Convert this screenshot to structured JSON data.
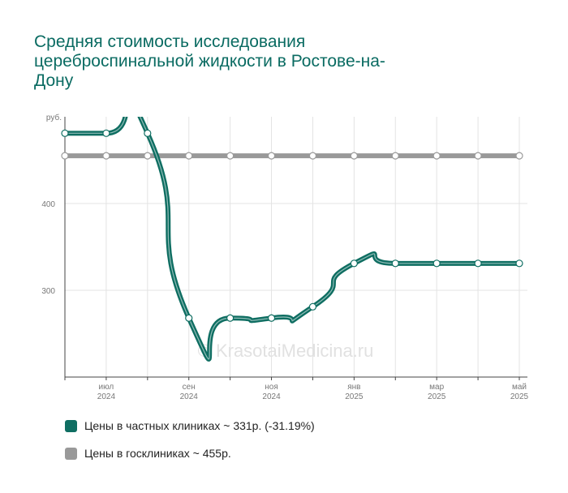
{
  "title": "Средняя стоимость исследования цереброспинальной жидкости в Ростове-на-Дону",
  "watermark": "© KrasotaiMedicina.ru",
  "chart_data": {
    "type": "line",
    "ylabel": "руб.",
    "ylim": [
      200,
      500
    ],
    "yticks": [
      300,
      400
    ],
    "x": [
      "2024-06",
      "2024-07",
      "2024-08",
      "2024-09",
      "2024-10",
      "2024-11",
      "2024-12",
      "2025-01",
      "2025-02",
      "2025-03",
      "2025-04",
      "2025-05"
    ],
    "xtick_labels": [
      {
        "month": "июл",
        "year": "2024",
        "index": 1
      },
      {
        "month": "сен",
        "year": "2024",
        "index": 3
      },
      {
        "month": "ноя",
        "year": "2024",
        "index": 5
      },
      {
        "month": "янв",
        "year": "2025",
        "index": 7
      },
      {
        "month": "мар",
        "year": "2025",
        "index": 9
      },
      {
        "month": "май",
        "year": "2025",
        "index": 11
      }
    ],
    "series": [
      {
        "name": "Цены в частных клиниках ~ 331р. (-31.19%)",
        "color": "#0f6e62",
        "values": [
          481,
          481,
          481,
          268,
          268,
          268,
          281,
          331,
          331,
          331,
          331,
          331
        ]
      },
      {
        "name": "Цены в госклиниках ~ 455р.",
        "color": "#999999",
        "values": [
          455,
          455,
          455,
          455,
          455,
          455,
          455,
          455,
          455,
          455,
          455,
          455
        ]
      }
    ],
    "grid": true,
    "legend_position": "bottom-left"
  }
}
